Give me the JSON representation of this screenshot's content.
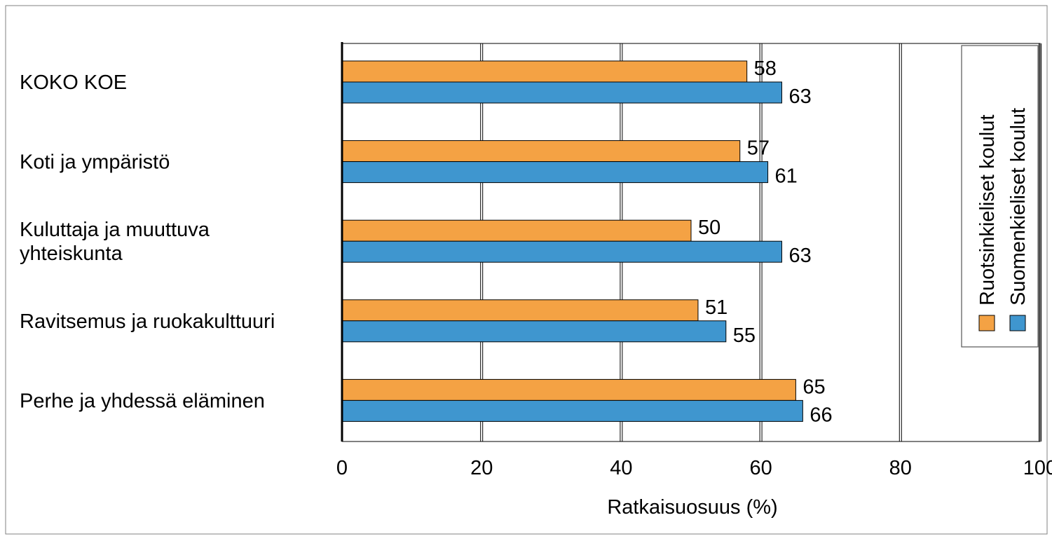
{
  "chart_data": {
    "type": "bar",
    "orientation": "horizontal",
    "categories": [
      [
        "KOKO KOE"
      ],
      [
        "Koti ja ympäristö"
      ],
      [
        "Kuluttaja ja muuttuva",
        "yhteiskunta"
      ],
      [
        "Ravitsemus ja ruokakulttuuri"
      ],
      [
        "Perhe ja yhdessä eläminen"
      ]
    ],
    "series": [
      {
        "name": "Ruotsinkieliset koulut",
        "color": "#F4A244",
        "values": [
          58,
          57,
          50,
          51,
          65
        ]
      },
      {
        "name": "Suomenkieliset koulut",
        "color": "#3F96CF",
        "values": [
          63,
          61,
          63,
          55,
          66
        ]
      }
    ],
    "xlabel": "Ratkaisuosuus (%)",
    "xlim": [
      0,
      100
    ],
    "xticks": [
      "0",
      "20",
      "40",
      "60",
      "80",
      "100"
    ],
    "grid": true,
    "legend_position": "right"
  }
}
